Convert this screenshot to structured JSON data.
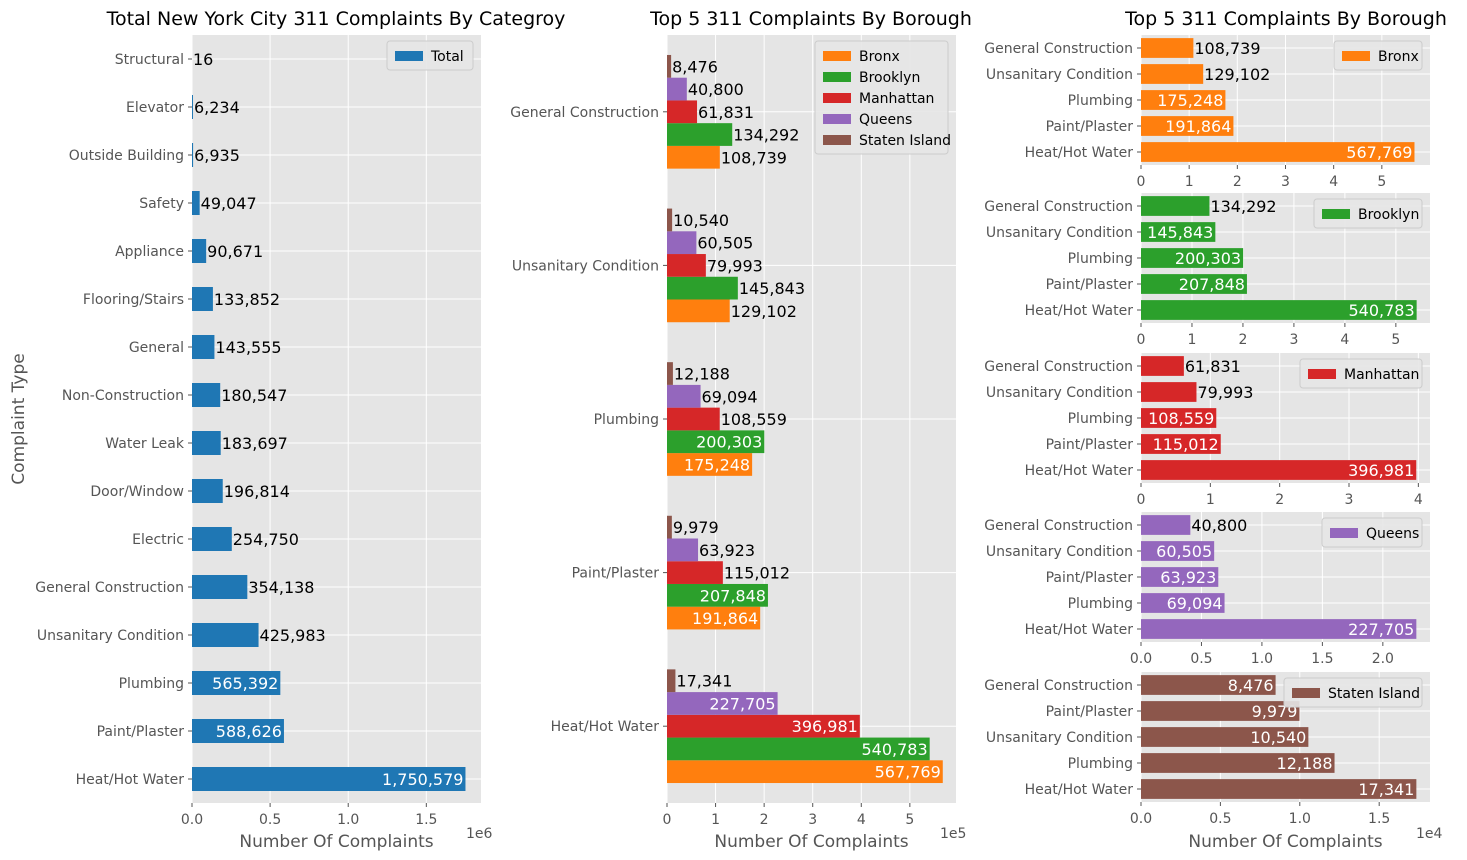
{
  "colors": {
    "Total": "#1f77b4",
    "Bronx": "#ff7f0e",
    "Brooklyn": "#2ca02c",
    "Manhattan": "#d62728",
    "Queens": "#9467bd",
    "Staten Island": "#8c564b",
    "plot_bg": "#e5e5e5",
    "grid": "#ffffff",
    "tick_text": "#555555"
  },
  "chart_data": [
    {
      "id": "total",
      "type": "bar",
      "orientation": "horizontal",
      "title": "Total New York City 311 Complaints By Categroy",
      "xlabel": "Number Of Complaints",
      "ylabel": "Complaint Type",
      "x_offset_text": "1e6",
      "xlim": [
        0,
        1850000
      ],
      "xticks": [
        0,
        500000,
        1000000,
        1500000
      ],
      "xtick_labels": [
        "0.0",
        "0.5",
        "1.0",
        "1.5"
      ],
      "grid": true,
      "legend": "top-right",
      "categories": [
        "Heat/Hot Water",
        "Paint/Plaster",
        "Plumbing",
        "Unsanitary Condition",
        "General Construction",
        "Electric",
        "Door/Window",
        "Water Leak",
        "Non-Construction",
        "General",
        "Flooring/Stairs",
        "Appliance",
        "Safety",
        "Outside Building",
        "Elevator",
        "Structural"
      ],
      "series": [
        {
          "name": "Total",
          "values": [
            1750579,
            588626,
            565392,
            425983,
            354138,
            254750,
            196814,
            183697,
            180547,
            143555,
            133852,
            90671,
            49047,
            6935,
            6234,
            16
          ],
          "labels": [
            "1,750,579",
            "588,626",
            "565,392",
            "425,983",
            "354,138",
            "254,750",
            "196,814",
            "183,697",
            "180,547",
            "143,555",
            "133,852",
            "90,671",
            "49,047",
            "6,935",
            "6,234",
            "16"
          ]
        }
      ]
    },
    {
      "id": "grouped",
      "type": "bar",
      "orientation": "horizontal",
      "title": "Top 5 311 Complaints By Borough",
      "xlabel": "Number Of Complaints",
      "x_offset_text": "1e5",
      "xlim": [
        0,
        595000
      ],
      "xticks": [
        0,
        100000,
        200000,
        300000,
        400000,
        500000
      ],
      "xtick_labels": [
        "0",
        "1",
        "2",
        "3",
        "4",
        "5"
      ],
      "grid": true,
      "legend": "top-right",
      "categories": [
        "Heat/Hot Water",
        "Paint/Plaster",
        "Plumbing",
        "Unsanitary Condition",
        "General Construction"
      ],
      "series": [
        {
          "name": "Bronx",
          "values": [
            567769,
            191864,
            175248,
            129102,
            108739
          ],
          "labels": [
            "567,769",
            "191,864",
            "175,248",
            "129,102",
            "108,739"
          ]
        },
        {
          "name": "Brooklyn",
          "values": [
            540783,
            207848,
            200303,
            145843,
            134292
          ],
          "labels": [
            "540,783",
            "207,848",
            "200,303",
            "145,843",
            "134,292"
          ]
        },
        {
          "name": "Manhattan",
          "values": [
            396981,
            115012,
            108559,
            79993,
            61831
          ],
          "labels": [
            "396,981",
            "115,012",
            "108,559",
            "79,993",
            "61,831"
          ]
        },
        {
          "name": "Queens",
          "values": [
            227705,
            63923,
            69094,
            60505,
            40800
          ],
          "labels": [
            "227,705",
            "63,923",
            "69,094",
            "60,505",
            "40,800"
          ]
        },
        {
          "name": "Staten Island",
          "values": [
            17341,
            9979,
            12188,
            10540,
            8476
          ],
          "labels": [
            "17,341",
            "9,979",
            "12,188",
            "10,540",
            "8,476"
          ]
        }
      ]
    },
    {
      "id": "bronx",
      "type": "bar",
      "orientation": "horizontal",
      "title": "Top 5 311 Complaints By Borough",
      "xlim": [
        0,
        600000
      ],
      "xticks": [
        0,
        100000,
        200000,
        300000,
        400000,
        500000
      ],
      "xtick_labels": [
        "0",
        "1",
        "2",
        "3",
        "4",
        "5"
      ],
      "grid": true,
      "legend": "top-right",
      "categories": [
        "Heat/Hot Water",
        "Paint/Plaster",
        "Plumbing",
        "Unsanitary Condition",
        "General Construction"
      ],
      "series": [
        {
          "name": "Bronx",
          "values": [
            567769,
            191864,
            175248,
            129102,
            108739
          ],
          "labels": [
            "567,769",
            "191,864",
            "175,248",
            "129,102",
            "108,739"
          ]
        }
      ]
    },
    {
      "id": "brooklyn",
      "type": "bar",
      "orientation": "horizontal",
      "title": "",
      "xlim": [
        0,
        567000
      ],
      "xticks": [
        0,
        100000,
        200000,
        300000,
        400000,
        500000
      ],
      "xtick_labels": [
        "0",
        "1",
        "2",
        "3",
        "4",
        "5"
      ],
      "grid": true,
      "legend": "top-right",
      "categories": [
        "Heat/Hot Water",
        "Paint/Plaster",
        "Plumbing",
        "Unsanitary Condition",
        "General Construction"
      ],
      "series": [
        {
          "name": "Brooklyn",
          "values": [
            540783,
            207848,
            200303,
            145843,
            134292
          ],
          "labels": [
            "540,783",
            "207,848",
            "200,303",
            "145,843",
            "134,292"
          ]
        }
      ]
    },
    {
      "id": "manhattan",
      "type": "bar",
      "orientation": "horizontal",
      "title": "",
      "xlim": [
        0,
        416800
      ],
      "xticks": [
        0,
        100000,
        200000,
        300000,
        400000
      ],
      "xtick_labels": [
        "0",
        "1",
        "2",
        "3",
        "4"
      ],
      "grid": true,
      "legend": "top-right",
      "categories": [
        "Heat/Hot Water",
        "Paint/Plaster",
        "Plumbing",
        "Unsanitary Condition",
        "General Construction"
      ],
      "series": [
        {
          "name": "Manhattan",
          "values": [
            396981,
            115012,
            108559,
            79993,
            61831
          ],
          "labels": [
            "396,981",
            "115,012",
            "108,559",
            "79,993",
            "61,831"
          ]
        }
      ]
    },
    {
      "id": "queens",
      "type": "bar",
      "orientation": "horizontal",
      "title": "",
      "xlim": [
        0,
        239000
      ],
      "xticks": [
        0,
        50000,
        100000,
        150000,
        200000
      ],
      "xtick_labels": [
        "0.0",
        "0.5",
        "1.0",
        "1.5",
        "2.0"
      ],
      "grid": true,
      "legend": "top-right",
      "categories": [
        "Heat/Hot Water",
        "Plumbing",
        "Paint/Plaster",
        "Unsanitary Condition",
        "General Construction"
      ],
      "series": [
        {
          "name": "Queens",
          "values": [
            227705,
            69094,
            63923,
            60505,
            40800
          ],
          "labels": [
            "227,705",
            "69,094",
            "63,923",
            "60,505",
            "40,800"
          ]
        }
      ]
    },
    {
      "id": "staten",
      "type": "bar",
      "orientation": "horizontal",
      "title": "",
      "xlabel": "Number Of Complaints",
      "x_offset_text": "1e4",
      "xlim": [
        0,
        18200
      ],
      "xticks": [
        0,
        5000,
        10000,
        15000
      ],
      "xtick_labels": [
        "0.0",
        "0.5",
        "1.0",
        "1.5"
      ],
      "grid": true,
      "legend": "top-right",
      "categories": [
        "Heat/Hot Water",
        "Plumbing",
        "Unsanitary Condition",
        "Paint/Plaster",
        "General Construction"
      ],
      "series": [
        {
          "name": "Staten Island",
          "values": [
            17341,
            12188,
            10540,
            9979,
            8476
          ],
          "labels": [
            "17,341",
            "12,188",
            "10,540",
            "9,979",
            "8,476"
          ]
        }
      ]
    }
  ]
}
